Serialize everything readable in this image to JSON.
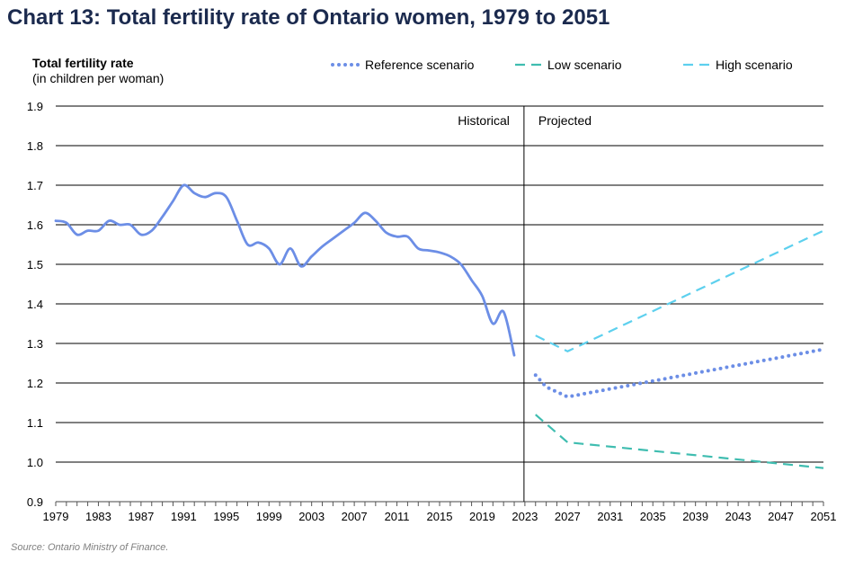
{
  "title": "Chart 13: Total fertility rate of Ontario women, 1979 to 2051",
  "source": "Source: Ontario Ministry of Finance.",
  "chart_data": {
    "type": "line",
    "ylabel": "Total fertility  rate",
    "ylabel_sub": "(in children  per woman)",
    "ylim": [
      0.9,
      1.9
    ],
    "yticks": [
      "0.9",
      "1.0",
      "1.1",
      "1.2",
      "1.3",
      "1.4",
      "1.5",
      "1.6",
      "1.7",
      "1.8",
      "1.9"
    ],
    "xlim": [
      1979,
      2051
    ],
    "xticks": [
      "1979",
      "1983",
      "1987",
      "1991",
      "1995",
      "1999",
      "2003",
      "2007",
      "2011",
      "2015",
      "2019",
      "2023",
      "2027",
      "2031",
      "2035",
      "2039",
      "2043",
      "2047",
      "2051"
    ],
    "grid": true,
    "legend_position": "top-right",
    "divider_year": 2023,
    "region_labels": {
      "left": "Historical",
      "right": "Projected"
    },
    "series": [
      {
        "name": "",
        "style": "solid",
        "color": "#6c8ee6",
        "x": [
          1979,
          1980,
          1981,
          1982,
          1983,
          1984,
          1985,
          1986,
          1987,
          1988,
          1989,
          1990,
          1991,
          1992,
          1993,
          1994,
          1995,
          1996,
          1997,
          1998,
          1999,
          2000,
          2001,
          2002,
          2003,
          2004,
          2005,
          2006,
          2007,
          2008,
          2009,
          2010,
          2011,
          2012,
          2013,
          2014,
          2015,
          2016,
          2017,
          2018,
          2019,
          2020,
          2021,
          2022
        ],
        "y": [
          1.61,
          1.605,
          1.575,
          1.585,
          1.585,
          1.61,
          1.6,
          1.6,
          1.575,
          1.585,
          1.62,
          1.66,
          1.7,
          1.68,
          1.67,
          1.68,
          1.67,
          1.61,
          1.55,
          1.555,
          1.54,
          1.5,
          1.54,
          1.495,
          1.52,
          1.545,
          1.565,
          1.585,
          1.605,
          1.63,
          1.61,
          1.58,
          1.57,
          1.57,
          1.54,
          1.535,
          1.53,
          1.52,
          1.5,
          1.46,
          1.42,
          1.35,
          1.38,
          1.27
        ]
      },
      {
        "name": "Reference scenario",
        "style": "dotted",
        "color": "#6c8ee6",
        "x": [
          2024,
          2025,
          2027,
          2051
        ],
        "y": [
          1.22,
          1.19,
          1.165,
          1.285
        ]
      },
      {
        "name": "Low scenario",
        "style": "dashed",
        "color": "#3fbdb0",
        "x": [
          2024,
          2027,
          2051
        ],
        "y": [
          1.12,
          1.05,
          0.985
        ]
      },
      {
        "name": "High scenario",
        "style": "dashed",
        "color": "#5dd0ee",
        "x": [
          2024,
          2027,
          2051
        ],
        "y": [
          1.32,
          1.28,
          1.585
        ]
      }
    ]
  }
}
